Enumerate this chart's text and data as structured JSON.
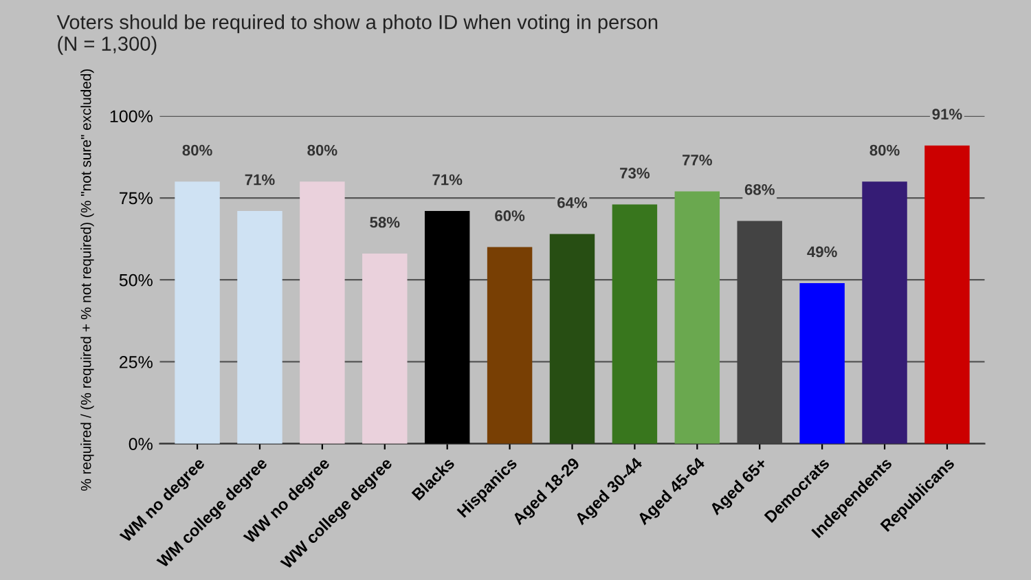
{
  "chart_data": {
    "type": "bar",
    "title": "Voters should be required to show a photo ID when voting in person\n(N = 1,300)",
    "ylabel": "% required / (% required + % not required) (% \"not sure\" excluded)",
    "categories": [
      "WM no degree",
      "WM college degree",
      "WW no degree",
      "WW college degree",
      "Blacks",
      "Hispanics",
      "Aged 18-29",
      "Aged 30-44",
      "Aged 45-64",
      "Aged 65+",
      "Democrats",
      "Independents",
      "Republicans"
    ],
    "values": [
      80,
      71,
      80,
      58,
      71,
      60,
      64,
      73,
      77,
      68,
      49,
      80,
      91
    ],
    "value_labels": [
      "80%",
      "71%",
      "80%",
      "58%",
      "71%",
      "60%",
      "64%",
      "73%",
      "77%",
      "68%",
      "49%",
      "80%",
      "91%"
    ],
    "colors": [
      "#cfe2f3",
      "#cfe2f3",
      "#ead1dc",
      "#ead1dc",
      "#000000",
      "#783f04",
      "#274e13",
      "#38761d",
      "#6aa84f",
      "#434343",
      "#0000ff",
      "#351c75",
      "#cc0000"
    ],
    "ylim": [
      0,
      100
    ],
    "yticks": [
      {
        "value": 0,
        "label": "0%"
      },
      {
        "value": 25,
        "label": "25%"
      },
      {
        "value": 50,
        "label": "50%"
      },
      {
        "value": 75,
        "label": "75%"
      },
      {
        "value": 100,
        "label": "100%"
      }
    ],
    "grid": "y",
    "legend": false
  }
}
